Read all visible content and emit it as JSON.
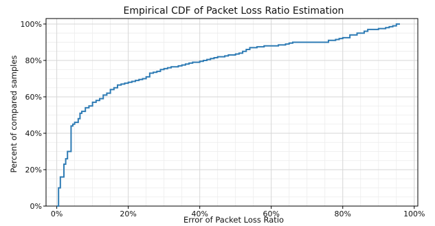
{
  "chart_data": {
    "type": "line",
    "title": "Empirical CDF of Packet Loss Ratio Estimation",
    "xlabel": "Error of Packet Loss Ratio",
    "ylabel": "Percent of compared samples",
    "xlim": [
      -3,
      101
    ],
    "ylim": [
      0,
      103
    ],
    "x_ticks": [
      0,
      20,
      40,
      60,
      80,
      100
    ],
    "x_tick_labels": [
      "0%",
      "20%",
      "40%",
      "60%",
      "80%",
      "100%"
    ],
    "y_ticks": [
      0,
      20,
      40,
      60,
      80,
      100
    ],
    "y_tick_labels": [
      "0%",
      "20%",
      "40%",
      "60%",
      "80%",
      "100%"
    ],
    "grid": true,
    "grid_minor": true,
    "line_color": "#2e7bb4",
    "step": true,
    "series": [
      {
        "x": [
          0,
          0.5,
          1,
          2,
          2.5,
          3,
          4,
          4.5,
          5,
          6,
          6.5,
          7,
          8,
          9,
          10,
          11,
          12,
          13,
          14,
          15,
          16,
          17,
          18,
          19,
          20,
          21,
          22,
          23,
          24,
          25,
          26,
          27,
          28,
          29,
          30,
          31,
          32,
          33,
          34,
          35,
          36,
          37,
          38,
          39,
          40,
          41,
          42,
          43,
          44,
          45,
          46,
          47,
          48,
          49,
          50,
          51,
          52,
          53,
          54,
          55,
          56,
          57,
          58,
          59,
          60,
          62,
          64,
          65,
          66,
          68,
          70,
          72,
          74,
          76,
          78,
          79,
          80,
          82,
          84,
          86,
          87,
          88,
          90,
          92,
          93,
          94,
          95,
          96
        ],
        "y": [
          0,
          10,
          16,
          23,
          26,
          30,
          44,
          45,
          46,
          48,
          51,
          52,
          54,
          55,
          57,
          58,
          59,
          61,
          62,
          64,
          65,
          66.5,
          67,
          67.5,
          68,
          68.5,
          69,
          69.5,
          70,
          71,
          73,
          73.5,
          74,
          75,
          75.5,
          76,
          76.5,
          76.5,
          77,
          77.5,
          78,
          78.5,
          79,
          79,
          79.5,
          80,
          80.5,
          81,
          81.5,
          82,
          82,
          82.5,
          83,
          83,
          83.5,
          84,
          85,
          86,
          87,
          87,
          87.5,
          87.5,
          88,
          88,
          88,
          88.5,
          89,
          89.5,
          90,
          90,
          90,
          90,
          90,
          91,
          91.5,
          92,
          92.5,
          94,
          95,
          96,
          97,
          97,
          97.5,
          98,
          98.5,
          99,
          100,
          100
        ]
      }
    ]
  }
}
